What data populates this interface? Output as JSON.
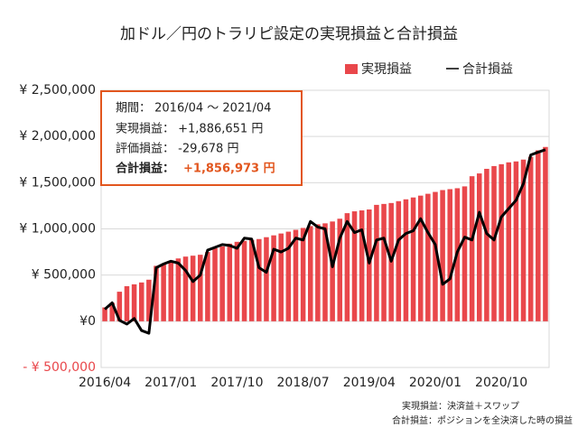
{
  "chart_data": {
    "type": "bar_line",
    "title": "加ドル／円のトラリピ設定の実現損益と合計損益",
    "categories": [
      "2016/04",
      null,
      null,
      null,
      null,
      null,
      null,
      null,
      null,
      "2017/01",
      null,
      null,
      null,
      null,
      null,
      null,
      null,
      null,
      "2017/10",
      null,
      null,
      null,
      null,
      null,
      null,
      null,
      null,
      "2018/07",
      null,
      null,
      null,
      null,
      null,
      null,
      null,
      null,
      "2019/04",
      null,
      null,
      null,
      null,
      null,
      null,
      null,
      null,
      "2020/01",
      null,
      null,
      null,
      null,
      null,
      null,
      null,
      null,
      "2020/10",
      null,
      null,
      null,
      null,
      null,
      null
    ],
    "series": [
      {
        "name": "実現損益",
        "type": "bar",
        "color": "#e9474b",
        "values": [
          150000,
          200000,
          320000,
          380000,
          400000,
          420000,
          450000,
          600000,
          620000,
          650000,
          680000,
          700000,
          710000,
          720000,
          750000,
          790000,
          810000,
          840000,
          860000,
          870000,
          880000,
          890000,
          910000,
          930000,
          950000,
          970000,
          990000,
          1010000,
          1030000,
          1050000,
          1060000,
          1080000,
          1110000,
          1170000,
          1190000,
          1200000,
          1210000,
          1260000,
          1270000,
          1280000,
          1300000,
          1320000,
          1340000,
          1360000,
          1380000,
          1400000,
          1420000,
          1430000,
          1440000,
          1460000,
          1570000,
          1600000,
          1650000,
          1680000,
          1700000,
          1720000,
          1730000,
          1750000,
          1780000,
          1850000,
          1886651
        ]
      },
      {
        "name": "合計損益",
        "type": "line",
        "color": "#000000",
        "values": [
          130000,
          200000,
          10000,
          -30000,
          30000,
          -100000,
          -130000,
          580000,
          620000,
          650000,
          630000,
          550000,
          430000,
          500000,
          770000,
          800000,
          830000,
          820000,
          790000,
          900000,
          890000,
          580000,
          530000,
          780000,
          750000,
          790000,
          900000,
          880000,
          1080000,
          1020000,
          1000000,
          590000,
          900000,
          1080000,
          960000,
          990000,
          630000,
          880000,
          900000,
          650000,
          880000,
          950000,
          980000,
          1110000,
          960000,
          830000,
          400000,
          460000,
          750000,
          910000,
          880000,
          1180000,
          950000,
          880000,
          1130000,
          1220000,
          1310000,
          1490000,
          1800000,
          1830000,
          1856973
        ]
      }
    ],
    "ylim": [
      -500000,
      2500000
    ],
    "yticks": [
      {
        "value": -500000,
        "label": "- ¥ 500,000"
      },
      {
        "value": 0,
        "label": "¥0"
      },
      {
        "value": 500000,
        "label": "¥ 500,000"
      },
      {
        "value": 1000000,
        "label": "¥ 1,000,000"
      },
      {
        "value": 1500000,
        "label": "¥ 1,500,000"
      },
      {
        "value": 2000000,
        "label": "¥ 2,000,000"
      },
      {
        "value": 2500000,
        "label": "¥ 2,500,000"
      }
    ],
    "grid": true,
    "legend": "top-right",
    "summary": {
      "period": "期間： 2016/04 ～ 2021/04",
      "realized": "実現損益： +1,886,651 円",
      "unrealized": "評価損益： -29,678 円",
      "total_label": "合計損益：",
      "total_value": "+1,856,973 円"
    },
    "notes": [
      "実現損益：決済益＋スワップ",
      "合計損益：ポジションを全決済した時の損益"
    ]
  }
}
